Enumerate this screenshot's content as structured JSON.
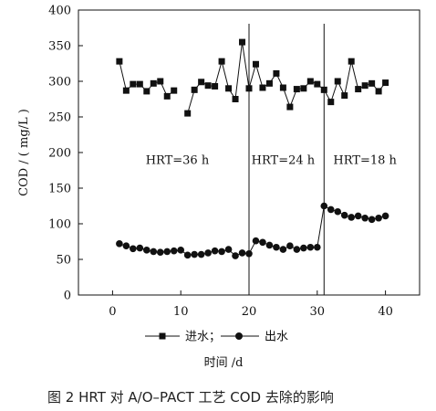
{
  "chart_data": {
    "type": "line",
    "x": [
      1,
      2,
      3,
      4,
      5,
      6,
      7,
      8,
      9,
      10,
      11,
      12,
      13,
      14,
      15,
      16,
      17,
      18,
      19,
      20,
      21,
      22,
      23,
      24,
      25,
      26,
      27,
      28,
      29,
      30,
      31,
      32,
      33,
      34,
      35,
      36,
      37,
      38,
      39,
      40
    ],
    "series": [
      {
        "name": "进水",
        "marker": "square",
        "values": [
          328,
          287,
          296,
          296,
          286,
          297,
          300,
          279,
          287,
          null,
          255,
          288,
          299,
          294,
          293,
          328,
          290,
          275,
          355,
          290,
          324,
          291,
          297,
          311,
          291,
          264,
          289,
          290,
          300,
          296,
          288,
          271,
          300,
          280,
          328,
          289,
          294,
          297,
          286,
          298
        ]
      },
      {
        "name": "出水",
        "marker": "circle",
        "values": [
          72,
          69,
          65,
          66,
          63,
          61,
          60,
          61,
          62,
          63,
          56,
          57,
          57,
          59,
          62,
          61,
          64,
          55,
          59,
          58,
          76,
          74,
          70,
          67,
          64,
          69,
          64,
          66,
          67,
          67,
          125,
          120,
          117,
          112,
          109,
          111,
          108,
          106,
          108,
          111
        ]
      }
    ],
    "xlabel": "时间 /d",
    "ylabel": "COD / ( mg/L )",
    "xlim": [
      -5,
      45
    ],
    "ylim": [
      0,
      400
    ],
    "xticks": [
      0,
      10,
      20,
      30,
      40
    ],
    "yticks": [
      0,
      50,
      100,
      150,
      200,
      250,
      300,
      350,
      400
    ],
    "dividers": [
      20,
      31
    ],
    "regions": [
      {
        "label": "HRT=36 h",
        "x_center": 9.5
      },
      {
        "label": "HRT=24 h",
        "x_center": 25
      },
      {
        "label": "HRT=18 h",
        "x_center": 37
      }
    ],
    "legend": {
      "placement": "bottom-center",
      "entries": [
        "进水；",
        "出水"
      ]
    },
    "grid": false
  },
  "caption": "图 2   HRT 对 A/O–PACT 工艺 COD 去除的影响"
}
